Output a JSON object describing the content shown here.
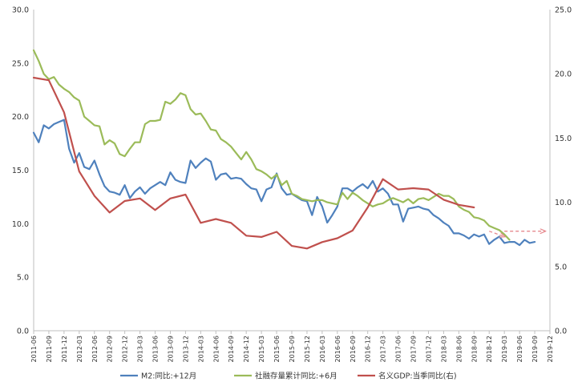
{
  "chart_data": {
    "type": "line",
    "title": "",
    "xlabel": "",
    "ylabel": "",
    "left_axis": {
      "min": 0,
      "max": 30,
      "ticks": [
        "0.0",
        "5.0",
        "10.0",
        "15.0",
        "20.0",
        "25.0",
        "30.0"
      ]
    },
    "right_axis": {
      "min": 0,
      "max": 25,
      "ticks": [
        "0.0",
        "5.0",
        "10.0",
        "15.0",
        "20.0",
        "25.0"
      ]
    },
    "x_start": "2011-06",
    "x_end": "2019-12",
    "x_ticks": [
      "2011-06",
      "2011-09",
      "2011-12",
      "2012-03",
      "2012-06",
      "2012-09",
      "2012-12",
      "2013-03",
      "2013-06",
      "2013-09",
      "2013-12",
      "2014-03",
      "2014-06",
      "2014-09",
      "2014-12",
      "2015-03",
      "2015-06",
      "2015-09",
      "2015-12",
      "2016-03",
      "2016-06",
      "2016-09",
      "2016-12",
      "2017-03",
      "2017-06",
      "2017-09",
      "2017-12",
      "2018-03",
      "2018-06",
      "2018-09",
      "2018-12",
      "2019-03",
      "2019-06",
      "2019-09",
      "2019-12"
    ],
    "grid": false,
    "legend_position": "bottom",
    "series": [
      {
        "name": "M2:同比:+12月",
        "axis": "left",
        "color": "#4f81bd",
        "points": [
          [
            "2011-06",
            18.5
          ],
          [
            "2011-07",
            17.6
          ],
          [
            "2011-08",
            19.2
          ],
          [
            "2011-09",
            18.9
          ],
          [
            "2011-10",
            19.3
          ],
          [
            "2011-11",
            19.5
          ],
          [
            "2011-12",
            19.7
          ],
          [
            "2012-01",
            17.0
          ],
          [
            "2012-02",
            15.7
          ],
          [
            "2012-03",
            16.6
          ],
          [
            "2012-04",
            15.3
          ],
          [
            "2012-05",
            15.1
          ],
          [
            "2012-06",
            15.9
          ],
          [
            "2012-07",
            14.6
          ],
          [
            "2012-08",
            13.5
          ],
          [
            "2012-09",
            13.0
          ],
          [
            "2012-10",
            12.9
          ],
          [
            "2012-11",
            12.7
          ],
          [
            "2012-12",
            13.6
          ],
          [
            "2013-01",
            12.4
          ],
          [
            "2013-02",
            13.0
          ],
          [
            "2013-03",
            13.4
          ],
          [
            "2013-04",
            12.8
          ],
          [
            "2013-05",
            13.3
          ],
          [
            "2013-06",
            13.6
          ],
          [
            "2013-07",
            13.9
          ],
          [
            "2013-08",
            13.6
          ],
          [
            "2013-09",
            14.8
          ],
          [
            "2013-10",
            14.1
          ],
          [
            "2013-11",
            13.9
          ],
          [
            "2013-12",
            13.8
          ],
          [
            "2014-01",
            15.9
          ],
          [
            "2014-02",
            15.2
          ],
          [
            "2014-03",
            15.7
          ],
          [
            "2014-04",
            16.1
          ],
          [
            "2014-05",
            15.8
          ],
          [
            "2014-06",
            14.1
          ],
          [
            "2014-07",
            14.6
          ],
          [
            "2014-08",
            14.7
          ],
          [
            "2014-09",
            14.2
          ],
          [
            "2014-10",
            14.3
          ],
          [
            "2014-11",
            14.2
          ],
          [
            "2014-12",
            13.7
          ],
          [
            "2015-01",
            13.3
          ],
          [
            "2015-02",
            13.2
          ],
          [
            "2015-03",
            12.1
          ],
          [
            "2015-04",
            13.2
          ],
          [
            "2015-05",
            13.4
          ],
          [
            "2015-06",
            14.7
          ],
          [
            "2015-07",
            13.3
          ],
          [
            "2015-08",
            12.7
          ],
          [
            "2015-09",
            12.8
          ],
          [
            "2015-10",
            12.5
          ],
          [
            "2015-11",
            12.2
          ],
          [
            "2015-12",
            12.1
          ],
          [
            "2016-01",
            10.8
          ],
          [
            "2016-02",
            12.5
          ],
          [
            "2016-03",
            11.6
          ],
          [
            "2016-04",
            10.1
          ],
          [
            "2016-05",
            10.8
          ],
          [
            "2016-06",
            11.6
          ],
          [
            "2016-07",
            13.3
          ],
          [
            "2016-08",
            13.3
          ],
          [
            "2016-09",
            13.0
          ],
          [
            "2016-10",
            13.4
          ],
          [
            "2016-11",
            13.7
          ],
          [
            "2016-12",
            13.3
          ],
          [
            "2017-01",
            14.0
          ],
          [
            "2017-02",
            13.0
          ],
          [
            "2017-03",
            13.3
          ],
          [
            "2017-04",
            12.8
          ],
          [
            "2017-05",
            11.8
          ],
          [
            "2017-06",
            11.8
          ],
          [
            "2017-07",
            10.2
          ],
          [
            "2017-08",
            11.4
          ],
          [
            "2017-09",
            11.5
          ],
          [
            "2017-10",
            11.6
          ],
          [
            "2017-11",
            11.4
          ],
          [
            "2017-12",
            11.3
          ],
          [
            "2018-01",
            10.8
          ],
          [
            "2018-02",
            10.5
          ],
          [
            "2018-03",
            10.1
          ],
          [
            "2018-04",
            9.8
          ],
          [
            "2018-05",
            9.1
          ],
          [
            "2018-06",
            9.1
          ],
          [
            "2018-07",
            8.9
          ],
          [
            "2018-08",
            8.6
          ],
          [
            "2018-09",
            9.0
          ],
          [
            "2018-10",
            8.8
          ],
          [
            "2018-11",
            9.0
          ],
          [
            "2018-12",
            8.1
          ],
          [
            "2019-01",
            8.5
          ],
          [
            "2019-02",
            8.8
          ],
          [
            "2019-03",
            8.2
          ],
          [
            "2019-04",
            8.3
          ],
          [
            "2019-05",
            8.3
          ],
          [
            "2019-06",
            8.0
          ],
          [
            "2019-07",
            8.5
          ],
          [
            "2019-08",
            8.2
          ],
          [
            "2019-09",
            8.3
          ]
        ]
      },
      {
        "name": "社融存量累计同比:+6月",
        "axis": "left",
        "color": "#9bbb59",
        "points": [
          [
            "2011-06",
            26.2
          ],
          [
            "2011-07",
            25.2
          ],
          [
            "2011-08",
            24.0
          ],
          [
            "2011-09",
            23.5
          ],
          [
            "2011-10",
            23.7
          ],
          [
            "2011-11",
            23.0
          ],
          [
            "2011-12",
            22.6
          ],
          [
            "2012-01",
            22.3
          ],
          [
            "2012-02",
            21.8
          ],
          [
            "2012-03",
            21.5
          ],
          [
            "2012-04",
            20.0
          ],
          [
            "2012-05",
            19.6
          ],
          [
            "2012-06",
            19.2
          ],
          [
            "2012-07",
            19.1
          ],
          [
            "2012-08",
            17.4
          ],
          [
            "2012-09",
            17.8
          ],
          [
            "2012-10",
            17.5
          ],
          [
            "2012-11",
            16.5
          ],
          [
            "2012-12",
            16.3
          ],
          [
            "2013-01",
            17.0
          ],
          [
            "2013-02",
            17.6
          ],
          [
            "2013-03",
            17.6
          ],
          [
            "2013-04",
            19.3
          ],
          [
            "2013-05",
            19.6
          ],
          [
            "2013-06",
            19.6
          ],
          [
            "2013-07",
            19.7
          ],
          [
            "2013-08",
            21.4
          ],
          [
            "2013-09",
            21.2
          ],
          [
            "2013-10",
            21.6
          ],
          [
            "2013-11",
            22.2
          ],
          [
            "2013-12",
            22.0
          ],
          [
            "2014-01",
            20.7
          ],
          [
            "2014-02",
            20.2
          ],
          [
            "2014-03",
            20.3
          ],
          [
            "2014-04",
            19.6
          ],
          [
            "2014-05",
            18.8
          ],
          [
            "2014-06",
            18.7
          ],
          [
            "2014-07",
            17.9
          ],
          [
            "2014-08",
            17.6
          ],
          [
            "2014-09",
            17.2
          ],
          [
            "2014-10",
            16.6
          ],
          [
            "2014-11",
            16.0
          ],
          [
            "2014-12",
            16.7
          ],
          [
            "2015-01",
            16.0
          ],
          [
            "2015-02",
            15.1
          ],
          [
            "2015-03",
            14.9
          ],
          [
            "2015-04",
            14.6
          ],
          [
            "2015-05",
            14.2
          ],
          [
            "2015-06",
            14.6
          ],
          [
            "2015-07",
            13.6
          ],
          [
            "2015-08",
            14.0
          ],
          [
            "2015-09",
            12.8
          ],
          [
            "2015-10",
            12.6
          ],
          [
            "2015-11",
            12.3
          ],
          [
            "2015-12",
            12.2
          ],
          [
            "2016-01",
            12.1
          ],
          [
            "2016-02",
            12.2
          ],
          [
            "2016-03",
            12.2
          ],
          [
            "2016-04",
            12.0
          ],
          [
            "2016-05",
            11.9
          ],
          [
            "2016-06",
            11.8
          ],
          [
            "2016-07",
            12.9
          ],
          [
            "2016-08",
            12.3
          ],
          [
            "2016-09",
            12.9
          ],
          [
            "2016-10",
            12.6
          ],
          [
            "2016-11",
            12.2
          ],
          [
            "2016-12",
            11.9
          ],
          [
            "2017-01",
            11.6
          ],
          [
            "2017-02",
            11.8
          ],
          [
            "2017-03",
            11.9
          ],
          [
            "2017-04",
            12.2
          ],
          [
            "2017-05",
            12.4
          ],
          [
            "2017-06",
            12.2
          ],
          [
            "2017-07",
            12.0
          ],
          [
            "2017-08",
            12.3
          ],
          [
            "2017-09",
            11.9
          ],
          [
            "2017-10",
            12.3
          ],
          [
            "2017-11",
            12.4
          ],
          [
            "2017-12",
            12.2
          ],
          [
            "2018-01",
            12.5
          ],
          [
            "2018-02",
            12.8
          ],
          [
            "2018-03",
            12.6
          ],
          [
            "2018-04",
            12.6
          ],
          [
            "2018-05",
            12.3
          ],
          [
            "2018-06",
            11.6
          ],
          [
            "2018-07",
            11.3
          ],
          [
            "2018-08",
            11.1
          ],
          [
            "2018-09",
            10.6
          ],
          [
            "2018-10",
            10.5
          ],
          [
            "2018-11",
            10.3
          ],
          [
            "2018-12",
            9.8
          ],
          [
            "2019-01",
            9.6
          ],
          [
            "2019-02",
            9.4
          ],
          [
            "2019-03",
            9.0
          ],
          [
            "2019-04",
            8.5
          ]
        ]
      },
      {
        "name": "名义GDP:当季同比(右)",
        "axis": "right",
        "color": "#c0504d",
        "points": [
          [
            "2011-06",
            19.7
          ],
          [
            "2011-09",
            19.5
          ],
          [
            "2011-12",
            17.0
          ],
          [
            "2012-03",
            12.4
          ],
          [
            "2012-06",
            10.5
          ],
          [
            "2012-09",
            9.2
          ],
          [
            "2012-12",
            10.1
          ],
          [
            "2013-03",
            10.3
          ],
          [
            "2013-06",
            9.4
          ],
          [
            "2013-09",
            10.3
          ],
          [
            "2013-12",
            10.6
          ],
          [
            "2014-03",
            8.4
          ],
          [
            "2014-06",
            8.7
          ],
          [
            "2014-09",
            8.4
          ],
          [
            "2014-12",
            7.4
          ],
          [
            "2015-03",
            7.3
          ],
          [
            "2015-06",
            7.7
          ],
          [
            "2015-09",
            6.6
          ],
          [
            "2015-12",
            6.4
          ],
          [
            "2016-03",
            6.9
          ],
          [
            "2016-06",
            7.2
          ],
          [
            "2016-09",
            7.8
          ],
          [
            "2016-12",
            9.6
          ],
          [
            "2017-03",
            11.8
          ],
          [
            "2017-06",
            11.0
          ],
          [
            "2017-09",
            11.1
          ],
          [
            "2017-12",
            11.0
          ],
          [
            "2018-03",
            10.2
          ],
          [
            "2018-06",
            9.8
          ],
          [
            "2018-09",
            9.6
          ]
        ]
      }
    ],
    "projections": [
      {
        "axis": "left",
        "color": "#e6898e",
        "style": "dashed-arrow",
        "points": [
          [
            "2018-12",
            9.3
          ],
          [
            "2019-03",
            8.8
          ]
        ]
      },
      {
        "axis": "left",
        "color": "#e6898e",
        "style": "dashed-arrow",
        "points": [
          [
            "2019-03",
            9.3
          ],
          [
            "2019-11",
            9.3
          ]
        ]
      }
    ]
  }
}
